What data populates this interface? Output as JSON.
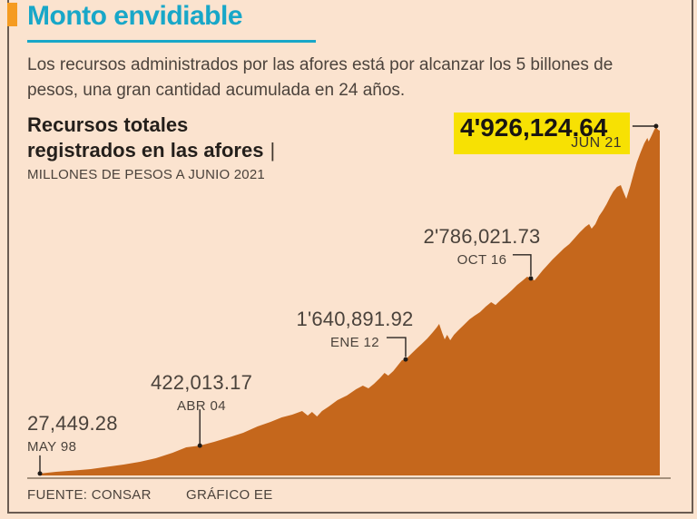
{
  "header": {
    "title": "Monto envidiable",
    "title_color": "#18a7c8",
    "accent_color": "#f59b21",
    "intro_lines": [
      "Los recursos administrados por las afores está por alcanzar los 5 billones de",
      "pesos, una gran cantidad acumulada en 24 años."
    ]
  },
  "chart": {
    "title_line1": "Recursos totales",
    "title_line2": "registrados en las afores",
    "title_divider": "|",
    "unit_label": "MILLONES DE PESOS A JUNIO 2021"
  },
  "footer": {
    "source": "FUENTE: CONSAR",
    "credit": "GRÁFICO EE"
  },
  "chart_data": {
    "type": "area",
    "title": "Recursos totales registrados en las afores",
    "unit": "Millones de pesos",
    "x_range": [
      "MAY 98",
      "JUN 21"
    ],
    "ylim": [
      0,
      4926124.64
    ],
    "fill_color": "#c5671c",
    "highlight_color": "#f7e103",
    "dot_color": "#1f1b18",
    "annotations": [
      {
        "value_label": "27,449.28",
        "date_label": "MAY 98",
        "t": 0.0,
        "value": 27449.28,
        "highlighted": false
      },
      {
        "value_label": "422,013.17",
        "date_label": "ABR 04",
        "t": 0.258,
        "value": 422013.17,
        "highlighted": false
      },
      {
        "value_label": "1'640,891.92",
        "date_label": "ENE 12",
        "t": 0.59,
        "value": 1640891.92,
        "highlighted": false
      },
      {
        "value_label": "2'786,021.73",
        "date_label": "OCT 16",
        "t": 0.792,
        "value": 2786021.73,
        "highlighted": false
      },
      {
        "value_label": "4'926,124.64",
        "date_label": "JUN 21",
        "t": 0.994,
        "value": 4926124.64,
        "highlighted": true
      }
    ],
    "series": [
      [
        0.0,
        27449
      ],
      [
        0.026,
        51000
      ],
      [
        0.056,
        70000
      ],
      [
        0.082,
        90000
      ],
      [
        0.108,
        122000
      ],
      [
        0.135,
        154000
      ],
      [
        0.161,
        192000
      ],
      [
        0.187,
        244000
      ],
      [
        0.214,
        321000
      ],
      [
        0.236,
        398000
      ],
      [
        0.258,
        422013
      ],
      [
        0.281,
        475000
      ],
      [
        0.305,
        539000
      ],
      [
        0.328,
        603000
      ],
      [
        0.351,
        693000
      ],
      [
        0.372,
        757000
      ],
      [
        0.39,
        821000
      ],
      [
        0.407,
        859000
      ],
      [
        0.423,
        911000
      ],
      [
        0.432,
        847000
      ],
      [
        0.439,
        898000
      ],
      [
        0.447,
        834000
      ],
      [
        0.455,
        911000
      ],
      [
        0.466,
        975000
      ],
      [
        0.48,
        1065000
      ],
      [
        0.495,
        1129000
      ],
      [
        0.51,
        1219000
      ],
      [
        0.521,
        1270000
      ],
      [
        0.53,
        1232000
      ],
      [
        0.539,
        1296000
      ],
      [
        0.548,
        1373000
      ],
      [
        0.556,
        1450000
      ],
      [
        0.562,
        1411000
      ],
      [
        0.57,
        1475000
      ],
      [
        0.577,
        1552000
      ],
      [
        0.584,
        1629000
      ],
      [
        0.59,
        1640892
      ],
      [
        0.599,
        1719000
      ],
      [
        0.608,
        1796000
      ],
      [
        0.616,
        1860000
      ],
      [
        0.625,
        1937000
      ],
      [
        0.634,
        2027000
      ],
      [
        0.64,
        2091000
      ],
      [
        0.644,
        2142000
      ],
      [
        0.649,
        2014000
      ],
      [
        0.653,
        1924000
      ],
      [
        0.657,
        1988000
      ],
      [
        0.662,
        1911000
      ],
      [
        0.668,
        1988000
      ],
      [
        0.675,
        2052000
      ],
      [
        0.684,
        2129000
      ],
      [
        0.693,
        2206000
      ],
      [
        0.701,
        2258000
      ],
      [
        0.71,
        2309000
      ],
      [
        0.719,
        2386000
      ],
      [
        0.728,
        2450000
      ],
      [
        0.735,
        2411000
      ],
      [
        0.744,
        2488000
      ],
      [
        0.753,
        2553000
      ],
      [
        0.761,
        2617000
      ],
      [
        0.77,
        2694000
      ],
      [
        0.779,
        2758000
      ],
      [
        0.786,
        2809000
      ],
      [
        0.792,
        2786022
      ],
      [
        0.798,
        2758000
      ],
      [
        0.804,
        2822000
      ],
      [
        0.811,
        2899000
      ],
      [
        0.819,
        2976000
      ],
      [
        0.827,
        3053000
      ],
      [
        0.836,
        3130000
      ],
      [
        0.845,
        3207000
      ],
      [
        0.854,
        3271000
      ],
      [
        0.862,
        3348000
      ],
      [
        0.871,
        3438000
      ],
      [
        0.88,
        3515000
      ],
      [
        0.886,
        3553000
      ],
      [
        0.89,
        3489000
      ],
      [
        0.896,
        3553000
      ],
      [
        0.902,
        3668000
      ],
      [
        0.908,
        3745000
      ],
      [
        0.914,
        3835000
      ],
      [
        0.92,
        3938000
      ],
      [
        0.925,
        4015000
      ],
      [
        0.931,
        4079000
      ],
      [
        0.937,
        4105000
      ],
      [
        0.941,
        4015000
      ],
      [
        0.946,
        3912000
      ],
      [
        0.952,
        4079000
      ],
      [
        0.958,
        4272000
      ],
      [
        0.963,
        4426000
      ],
      [
        0.969,
        4567000
      ],
      [
        0.975,
        4695000
      ],
      [
        0.98,
        4772000
      ],
      [
        0.982,
        4721000
      ],
      [
        0.987,
        4810000
      ],
      [
        0.991,
        4887000
      ],
      [
        0.994,
        4926125
      ],
      [
        0.997,
        4888000
      ],
      [
        1.0,
        4875000
      ]
    ]
  }
}
